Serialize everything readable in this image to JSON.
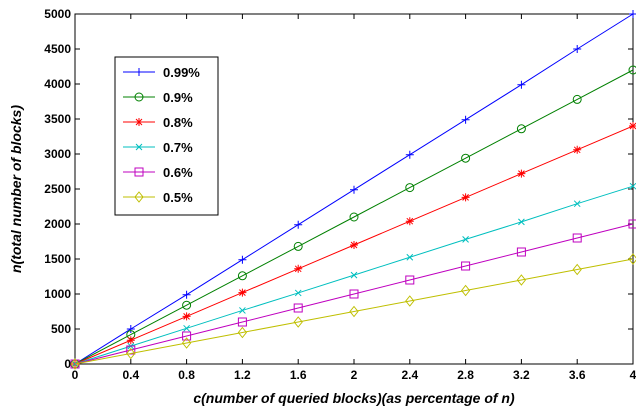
{
  "chart_data": {
    "type": "line",
    "title": "",
    "xlabel": "c(number of queried blocks)(as percentage of n)",
    "ylabel": "n(total number of blocks)",
    "xlim": [
      0,
      4
    ],
    "ylim": [
      0,
      5000
    ],
    "x_ticks": [
      "0",
      "0.4",
      "0.8",
      "1.2",
      "1.6",
      "2",
      "2.4",
      "2.8",
      "3.2",
      "3.6",
      "4"
    ],
    "y_ticks": [
      "0",
      "500",
      "1000",
      "1500",
      "2000",
      "2500",
      "3000",
      "3500",
      "4000",
      "4500",
      "5000"
    ],
    "grid": false,
    "legend_position": "upper-left",
    "x": [
      0,
      0.4,
      0.8,
      1.2,
      1.6,
      2,
      2.4,
      2.8,
      3.2,
      3.6,
      4
    ],
    "series": [
      {
        "name": "0.99%",
        "color": "#0000ff",
        "marker": "plus",
        "values": [
          0,
          500,
          990,
          1490,
          1990,
          2490,
          2990,
          3490,
          3990,
          4500,
          5000
        ]
      },
      {
        "name": "0.9%",
        "color": "#008000",
        "marker": "circle",
        "values": [
          0,
          420,
          840,
          1260,
          1680,
          2100,
          2520,
          2940,
          3360,
          3780,
          4200
        ]
      },
      {
        "name": "0.8%",
        "color": "#ff0000",
        "marker": "star",
        "values": [
          0,
          340,
          680,
          1020,
          1360,
          1700,
          2040,
          2380,
          2720,
          3060,
          3400
        ]
      },
      {
        "name": "0.7%",
        "color": "#00bfbf",
        "marker": "x",
        "values": [
          0,
          255,
          510,
          765,
          1015,
          1270,
          1525,
          1780,
          2030,
          2290,
          2540
        ]
      },
      {
        "name": "0.6%",
        "color": "#bf00bf",
        "marker": "square",
        "values": [
          0,
          200,
          400,
          600,
          800,
          1000,
          1200,
          1400,
          1600,
          1800,
          2000
        ]
      },
      {
        "name": "0.5%",
        "color": "#bfbf00",
        "marker": "diamond",
        "values": [
          0,
          150,
          300,
          450,
          600,
          750,
          900,
          1050,
          1200,
          1350,
          1500
        ]
      }
    ]
  }
}
